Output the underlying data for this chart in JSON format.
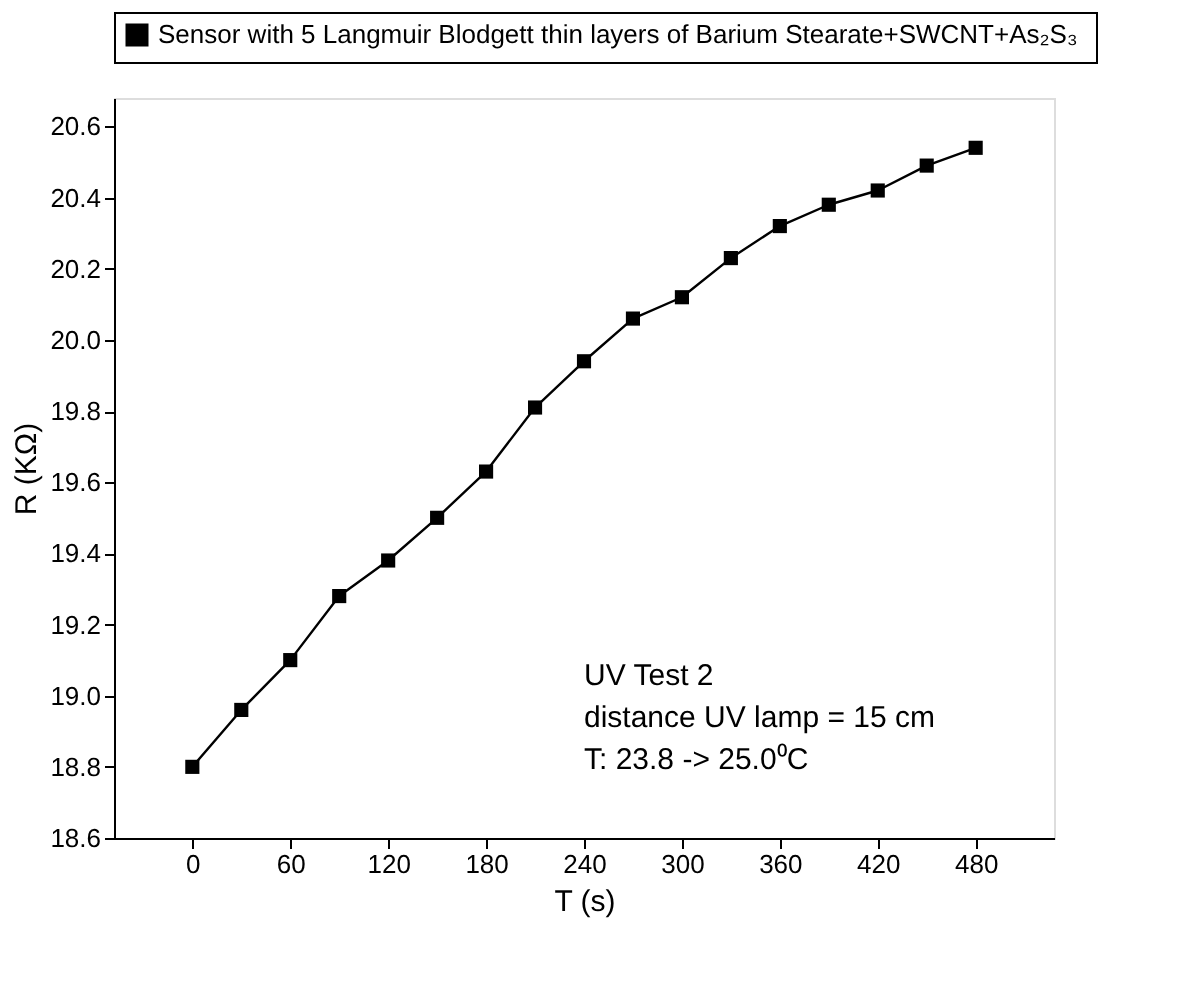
{
  "chart_data": {
    "type": "line",
    "xlabel": "T (s)",
    "ylabel": "R (KΩ)",
    "x": [
      0,
      30,
      60,
      90,
      120,
      150,
      180,
      210,
      240,
      270,
      300,
      330,
      360,
      390,
      420,
      450,
      480
    ],
    "series": [
      {
        "name": "Sensor with 5  Langmuir Blodgett thin layers of Barium Stearate+SWCNT+As₂S₃",
        "color": "#000000",
        "values": [
          18.8,
          18.96,
          19.1,
          19.28,
          19.38,
          19.5,
          19.63,
          19.81,
          19.94,
          20.06,
          20.12,
          20.23,
          20.32,
          20.38,
          20.42,
          20.49,
          20.54
        ]
      }
    ],
    "xlim": [
      -48,
      528
    ],
    "xticks": [
      0,
      60,
      120,
      180,
      240,
      300,
      360,
      420,
      480
    ],
    "ylim": [
      18.6,
      20.68
    ],
    "yticks": [
      18.6,
      18.8,
      {
        "value": 19,
        "label": "19.0"
      },
      19.2,
      19.4,
      19.6,
      19.8,
      {
        "value": 20,
        "label": "20.0"
      },
      20.2,
      20.4,
      20.6
    ],
    "annotations": [
      "UV Test 2",
      "distance UV lamp = 15 cm",
      "T: 23.8 -> 25.0⁰C"
    ],
    "marker": "square",
    "line_style": "solid",
    "legend": "top",
    "grid": false
  }
}
